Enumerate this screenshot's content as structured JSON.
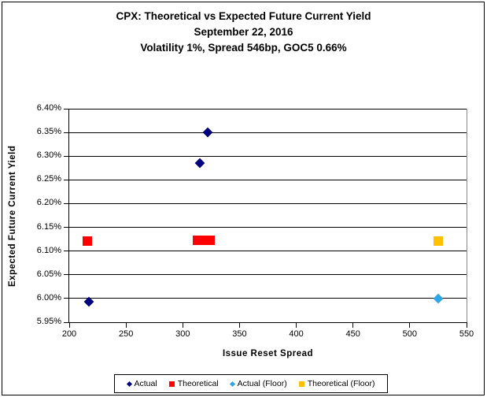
{
  "title": {
    "line1": "CPX: Theoretical vs Expected Future Current Yield",
    "line2": "September 22, 2016",
    "line3": "Volatility 1%, Spread 546bp, GOC5 0.66%"
  },
  "chart_data": {
    "type": "scatter",
    "title": "CPX: Theoretical vs Expected Future Current Yield",
    "subtitle1": "September 22, 2016",
    "subtitle2": "Volatility 1%, Spread 546bp, GOC5 0.66%",
    "xlabel": "Issue Reset Spread",
    "ylabel": "Expected Future Current Yield",
    "xlim": [
      200,
      550
    ],
    "ylim_pct": [
      5.95,
      6.4
    ],
    "xticks": [
      200,
      250,
      300,
      350,
      400,
      450,
      500,
      550
    ],
    "yticks_pct": [
      6.4,
      6.35,
      6.3,
      6.25,
      6.2,
      6.15,
      6.1,
      6.05,
      6.0,
      5.95
    ],
    "grid": "horizontal",
    "legend_position": "bottom",
    "series": [
      {
        "name": "Actual",
        "marker": "diamond",
        "color": "#000080",
        "points": [
          [
            217,
            5.994
          ],
          [
            315,
            6.285
          ],
          [
            322,
            6.351
          ]
        ]
      },
      {
        "name": "Theoretical",
        "marker": "square",
        "color": "#FF0000",
        "points": [
          [
            216,
            6.121
          ],
          [
            313,
            6.123
          ],
          [
            318,
            6.123
          ],
          [
            324,
            6.123
          ]
        ]
      },
      {
        "name": "Actual (Floor)",
        "marker": "diamond",
        "color": "#2CA6E5",
        "points": [
          [
            525,
            6.0
          ]
        ]
      },
      {
        "name": "Theoretical (Floor)",
        "marker": "square",
        "color": "#FFC000",
        "points": [
          [
            525,
            6.121
          ]
        ]
      }
    ]
  }
}
